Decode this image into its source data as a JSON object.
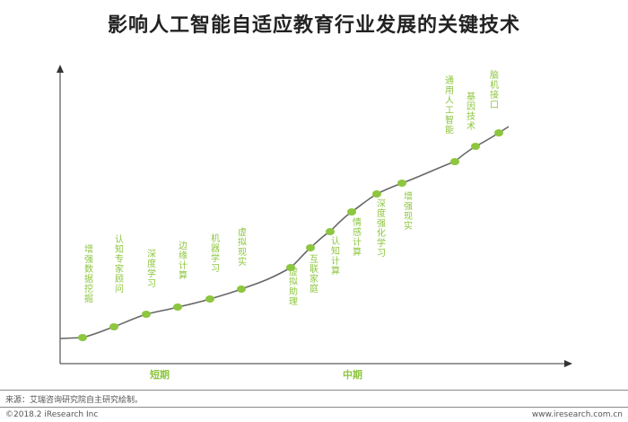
{
  "title": "影响人工智能自适应教育行业发展的关键技术",
  "phases": {
    "short": "短期",
    "mid": "中期"
  },
  "technologies": [
    "增强数据挖掘",
    "认知专家顾问",
    "深度学习",
    "边缘计算",
    "机器学习",
    "虚拟现实",
    "虚拟助理",
    "互联家庭",
    "认知计算",
    "情感计算",
    "深度强化学习",
    "增强现实",
    "通用人工智能",
    "基因技术",
    "脑机接口"
  ],
  "footer": {
    "source": "来源：艾瑞咨询研究院自主研究绘制。",
    "copyright": "©2018.2 iResearch Inc",
    "website": "www.iresearch.com.cn"
  },
  "colors": {
    "curve": "#666666",
    "node": "#8dc63f",
    "label": "#8dc63f",
    "axis": "#333333"
  }
}
